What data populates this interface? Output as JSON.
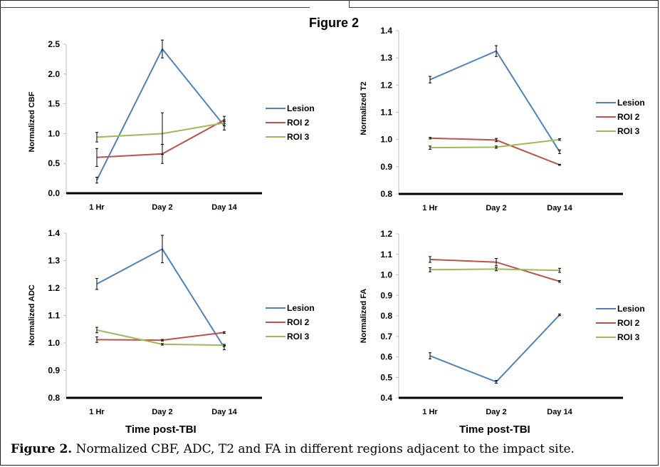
{
  "figure_title": "Figure 2",
  "shared_xlabel": "Time post-TBI",
  "caption": {
    "label": "Figure 2.",
    "text": " Normalized CBF, ADC, T2 and FA in different regions adjacent to the impact site."
  },
  "colors": {
    "Lesion": "#4f81bd",
    "ROI 2": "#c0504d",
    "ROI 3": "#9bbb59"
  },
  "chart_data": [
    {
      "type": "line",
      "ylabel": "Normalized CBF",
      "categories": [
        "1 Hr",
        "Day 2",
        "Day 14"
      ],
      "ylim": [
        0,
        2.5
      ],
      "yticks": [
        "0.0",
        "0.5",
        "1.0",
        "1.5",
        "2.0",
        "2.5"
      ],
      "legend_position": "right",
      "series": [
        {
          "name": "Lesion",
          "values": [
            0.22,
            2.42,
            1.13
          ],
          "errors": [
            0.05,
            0.15,
            0.07
          ]
        },
        {
          "name": "ROI 2",
          "values": [
            0.6,
            0.66,
            1.23
          ],
          "errors": [
            0.15,
            0.16,
            0.06
          ]
        },
        {
          "name": "ROI 3",
          "values": [
            0.94,
            1.0,
            1.18
          ],
          "errors": [
            0.08,
            0.35,
            0.05
          ]
        }
      ]
    },
    {
      "type": "line",
      "ylabel": "Normalized T2",
      "categories": [
        "1 Hr",
        "Day 2",
        "Day 14"
      ],
      "ylim": [
        0.8,
        1.4
      ],
      "yticks": [
        "0.8",
        "0.9",
        "1.0",
        "1.1",
        "1.2",
        "1.3",
        "1.4"
      ],
      "legend_position": "right",
      "series": [
        {
          "name": "Lesion",
          "values": [
            1.22,
            1.325,
            0.955
          ],
          "errors": [
            0.012,
            0.02,
            0.007
          ]
        },
        {
          "name": "ROI 2",
          "values": [
            1.005,
            0.998,
            0.907
          ],
          "errors": [
            0.003,
            0.006,
            0.002
          ]
        },
        {
          "name": "ROI 3",
          "values": [
            0.97,
            0.972,
            1.0
          ],
          "errors": [
            0.006,
            0.004,
            0.003
          ]
        }
      ]
    },
    {
      "type": "line",
      "ylabel": "Normalized ADC",
      "categories": [
        "1 Hr",
        "Day 2",
        "Day 14"
      ],
      "ylim": [
        0.8,
        1.4
      ],
      "yticks": [
        "0.8",
        "0.9",
        "1.0",
        "1.1",
        "1.2",
        "1.3",
        "1.4"
      ],
      "legend_position": "right",
      "series": [
        {
          "name": "Lesion",
          "values": [
            1.215,
            1.342,
            0.983
          ],
          "errors": [
            0.02,
            0.05,
            0.008
          ]
        },
        {
          "name": "ROI 2",
          "values": [
            1.012,
            1.01,
            1.038
          ],
          "errors": [
            0.01,
            0.003,
            0.003
          ]
        },
        {
          "name": "ROI 3",
          "values": [
            1.047,
            0.995,
            0.992
          ],
          "errors": [
            0.01,
            0.003,
            0.003
          ]
        }
      ]
    },
    {
      "type": "line",
      "ylabel": "Normalized FA",
      "categories": [
        "1 Hr",
        "Day 2",
        "Day 14"
      ],
      "ylim": [
        0.4,
        1.2
      ],
      "yticks": [
        "0.4",
        "0.5",
        "0.6",
        "0.7",
        "0.8",
        "0.9",
        "1.0",
        "1.1",
        "1.2"
      ],
      "legend_position": "right",
      "series": [
        {
          "name": "Lesion",
          "values": [
            0.605,
            0.478,
            0.805
          ],
          "errors": [
            0.015,
            0.007,
            0.004
          ]
        },
        {
          "name": "ROI 2",
          "values": [
            1.075,
            1.062,
            0.968
          ],
          "errors": [
            0.014,
            0.018,
            0.004
          ]
        },
        {
          "name": "ROI 3",
          "values": [
            1.025,
            1.028,
            1.022
          ],
          "errors": [
            0.01,
            0.008,
            0.01
          ]
        }
      ]
    }
  ]
}
